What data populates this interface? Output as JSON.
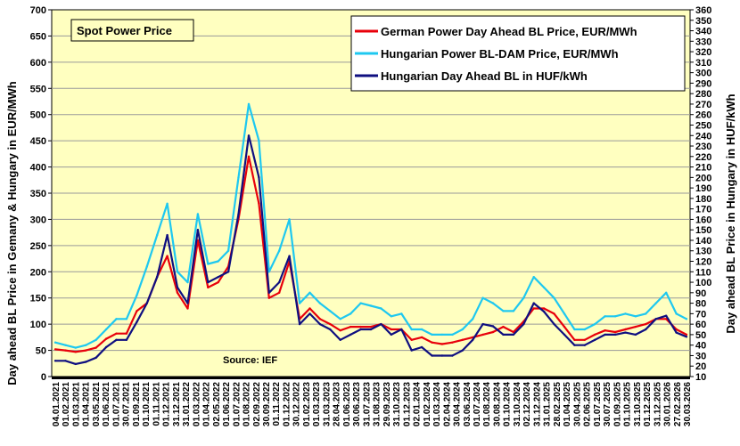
{
  "chart_data": {
    "type": "line",
    "title": "Spot Power Price",
    "source": "Source: IEF",
    "ylabel": "Day ahead BL Price in Gemany & Hungary in EUR/MWh",
    "y2label": "Day ahead BL Price in  Hungary in HUF/kWh",
    "ylim": [
      0,
      700
    ],
    "y2lim": [
      10,
      360
    ],
    "yticks": [
      0,
      50,
      100,
      150,
      200,
      250,
      300,
      350,
      400,
      450,
      500,
      550,
      600,
      650,
      700
    ],
    "y2ticks": [
      10,
      20,
      30,
      40,
      50,
      60,
      70,
      80,
      90,
      100,
      110,
      120,
      130,
      140,
      150,
      160,
      170,
      180,
      190,
      200,
      210,
      220,
      230,
      240,
      250,
      260,
      270,
      280,
      290,
      300,
      310,
      320,
      330,
      340,
      350,
      360
    ],
    "x_tick_labels": [
      "04.01.2021",
      "01.02.2021",
      "01.03.2021",
      "01.04.2021",
      "03.05.2021",
      "01.06.2021",
      "01.07.2021",
      "30.07.2021",
      "01.09.2021",
      "01.10.2021",
      "01.11.2021",
      "01.12.2021",
      "31.12.2021",
      "31.01.2022",
      "01.03.2022",
      "01.04.2022",
      "02.05.2022",
      "01.06.2022",
      "01.07.2022",
      "01.08.2022",
      "02.09.2022",
      "30.09.2022",
      "01.11.2022",
      "01.12.2022",
      "30.12.2022",
      "01.02.2023",
      "01.03.2023",
      "31.03.2023",
      "28.04.2023",
      "01.06.2023",
      "30.06.2023",
      "31.07.2023",
      "31.08.2023",
      "29.09.2023",
      "31.10.2023",
      "01.12.2023",
      "02.01.2024",
      "01.02.2024",
      "01.03.2024",
      "02.04.2024",
      "30.04.2024",
      "03.06.2024",
      "01.07.2024",
      "01.08.2024",
      "30.08.2024",
      "01.10.2024",
      "31.10.2024",
      "02.12.2024",
      "31.12.2024",
      "31.01.2025",
      "28.02.2025",
      "01.04.2025",
      "30.04.2025",
      "02.06.2025",
      "01.07.2025",
      "30.07.2025",
      "01.09.2025",
      "01.10.2025",
      "31.10.2025",
      "01.12.2025",
      "31.12.2025",
      "30.01.2026",
      "27.02.2026",
      "30.03.2026"
    ],
    "x": [
      "2021-01",
      "2021-02",
      "2021-03",
      "2021-04",
      "2021-05",
      "2021-06",
      "2021-07",
      "2021-08",
      "2021-09",
      "2021-10",
      "2021-11",
      "2021-12",
      "2022-01",
      "2022-02",
      "2022-03",
      "2022-04",
      "2022-05",
      "2022-06",
      "2022-07",
      "2022-08",
      "2022-09",
      "2022-10",
      "2022-11",
      "2022-12",
      "2023-01",
      "2023-02",
      "2023-03",
      "2023-04",
      "2023-05",
      "2023-06",
      "2023-07",
      "2023-08",
      "2023-09",
      "2023-10",
      "2023-11",
      "2023-12",
      "2024-01",
      "2024-02",
      "2024-03",
      "2024-04",
      "2024-05",
      "2024-06",
      "2024-07",
      "2024-08",
      "2024-09",
      "2024-10",
      "2024-11",
      "2024-12",
      "2025-01",
      "2025-02",
      "2025-03",
      "2025-04",
      "2025-05",
      "2025-06",
      "2025-07",
      "2025-08",
      "2025-09",
      "2025-10",
      "2025-11",
      "2025-12",
      "2026-01",
      "2026-02",
      "2026-03"
    ],
    "series": [
      {
        "name": "German Power Day Ahead BL Price, EUR/MWh",
        "axis": "left",
        "color": "#e8000b",
        "values": [
          52,
          50,
          47,
          50,
          55,
          72,
          82,
          82,
          125,
          140,
          190,
          230,
          160,
          130,
          260,
          170,
          180,
          210,
          300,
          420,
          330,
          150,
          160,
          220,
          110,
          130,
          110,
          100,
          88,
          95,
          95,
          95,
          100,
          90,
          90,
          70,
          75,
          65,
          62,
          65,
          70,
          75,
          80,
          85,
          95,
          85,
          105,
          130,
          130,
          120,
          95,
          70,
          70,
          80,
          88,
          85,
          90,
          95,
          100,
          110,
          110,
          90,
          80
        ]
      },
      {
        "name": "Hungarian Power BL-DAM Price, EUR/MWh",
        "axis": "left",
        "color": "#1ec8f0",
        "values": [
          65,
          60,
          55,
          60,
          70,
          90,
          110,
          110,
          155,
          210,
          270,
          330,
          200,
          180,
          310,
          215,
          220,
          240,
          380,
          520,
          450,
          200,
          240,
          300,
          140,
          160,
          140,
          125,
          110,
          120,
          140,
          135,
          130,
          115,
          120,
          90,
          90,
          80,
          80,
          80,
          90,
          110,
          150,
          140,
          125,
          125,
          150,
          190,
          170,
          150,
          120,
          90,
          90,
          100,
          115,
          115,
          120,
          115,
          120,
          140,
          160,
          120,
          110
        ]
      },
      {
        "name": "Hungarian Day Ahead BL in HUF/kWh",
        "axis": "right",
        "color": "#0f0f80",
        "values": [
          25,
          25,
          22,
          24,
          28,
          38,
          45,
          45,
          62,
          80,
          105,
          145,
          95,
          80,
          150,
          100,
          105,
          110,
          165,
          240,
          200,
          90,
          100,
          125,
          60,
          70,
          60,
          55,
          45,
          50,
          55,
          55,
          60,
          50,
          55,
          35,
          38,
          30,
          30,
          30,
          35,
          45,
          60,
          58,
          50,
          50,
          60,
          80,
          72,
          60,
          50,
          40,
          40,
          45,
          50,
          50,
          52,
          50,
          55,
          65,
          68,
          52,
          48
        ]
      }
    ],
    "legend_position": "top-right",
    "grid": true
  }
}
